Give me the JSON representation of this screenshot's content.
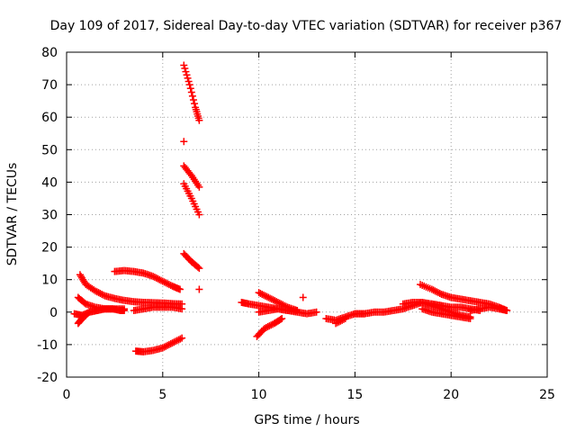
{
  "chart_data": {
    "type": "scatter",
    "title": "Day 109 of 2017, Sidereal Day-to-day VTEC variation (SDTVAR) for receiver p367",
    "xlabel": "GPS time / hours",
    "ylabel": "SDTVAR / TECUs",
    "xlim": [
      0,
      25
    ],
    "ylim": [
      -20,
      80
    ],
    "x_ticks": [
      0,
      5,
      10,
      15,
      20,
      25
    ],
    "y_ticks": [
      -20,
      -10,
      0,
      10,
      20,
      30,
      40,
      50,
      60,
      70,
      80
    ],
    "grid": true,
    "marker": "+",
    "colors": {
      "series": "#ff0000",
      "grid": "#a0a0a0",
      "axis": "#000000"
    },
    "series": [
      {
        "segments": [
          {
            "x": [
              0.7,
              1.0,
              1.5,
              2.0,
              2.5,
              3.0,
              3.5,
              4.0,
              4.5,
              5.0,
              5.5,
              6.0
            ],
            "y": [
              11.5,
              8.5,
              6.5,
              5.0,
              4.2,
              3.6,
              3.2,
              3.0,
              2.9,
              2.8,
              2.6,
              2.5
            ]
          },
          {
            "x": [
              0.6,
              1.0,
              1.5,
              2.0,
              2.5,
              3.0
            ],
            "y": [
              4.5,
              2.5,
              1.5,
              1.0,
              1.0,
              1.0
            ]
          },
          {
            "x": [
              0.4,
              0.8,
              1.2,
              1.6,
              2.0,
              2.4,
              2.8,
              3.0
            ],
            "y": [
              -0.5,
              -1.0,
              0.0,
              0.5,
              1.0,
              1.0,
              0.5,
              0.5
            ]
          },
          {
            "x": [
              0.6,
              0.8,
              1.0
            ],
            "y": [
              -3.5,
              -2.0,
              -1.0
            ]
          },
          {
            "x": [
              2.5,
              3.0,
              3.5,
              4.0,
              4.5,
              5.0,
              5.5,
              5.9
            ],
            "y": [
              12.5,
              12.8,
              12.5,
              12.0,
              11.0,
              9.5,
              8.0,
              7.0
            ]
          },
          {
            "x": [
              3.5,
              4.0,
              4.5,
              5.0,
              5.5,
              6.0
            ],
            "y": [
              0.5,
              1.0,
              1.5,
              1.5,
              1.5,
              1.0
            ]
          },
          {
            "x": [
              3.6,
              4.0,
              4.5,
              5.0,
              5.5,
              6.0
            ],
            "y": [
              -12.0,
              -12.2,
              -11.8,
              -11.0,
              -9.5,
              -8.0
            ]
          },
          {
            "x": [
              6.1,
              6.4,
              6.7,
              6.9
            ],
            "y": [
              76.0,
              70.0,
              63.0,
              59.0
            ]
          },
          {
            "x": [
              6.1
            ],
            "y": [
              52.5
            ]
          },
          {
            "x": [
              6.1,
              6.5,
              6.9
            ],
            "y": [
              45.0,
              42.0,
              38.5
            ]
          },
          {
            "x": [
              6.1,
              6.5,
              6.9
            ],
            "y": [
              39.5,
              35.0,
              30.0
            ]
          },
          {
            "x": [
              6.1,
              6.5,
              6.9
            ],
            "y": [
              18.0,
              15.5,
              13.5
            ]
          },
          {
            "x": [
              6.9
            ],
            "y": [
              7.0
            ]
          },
          {
            "x": [
              9.1,
              9.5,
              10.0,
              10.5,
              11.0,
              11.5,
              12.0
            ],
            "y": [
              3.0,
              2.5,
              2.0,
              1.5,
              1.0,
              0.5,
              0.5
            ]
          },
          {
            "x": [
              10.0,
              10.5,
              11.0,
              11.5,
              12.0
            ],
            "y": [
              6.0,
              4.5,
              3.0,
              1.5,
              0.5
            ]
          },
          {
            "x": [
              10.0,
              10.5,
              11.0,
              11.5,
              12.0,
              12.5,
              13.0
            ],
            "y": [
              0.0,
              0.5,
              1.0,
              0.5,
              0.0,
              -0.5,
              0.0
            ]
          },
          {
            "x": [
              9.9,
              10.3,
              10.8,
              11.2
            ],
            "y": [
              -7.5,
              -5.0,
              -3.5,
              -2.0
            ]
          },
          {
            "x": [
              12.3
            ],
            "y": [
              4.5
            ]
          },
          {
            "x": [
              13.5,
              14.0,
              14.5,
              15.0,
              15.5
            ],
            "y": [
              -2.0,
              -2.5,
              -1.5,
              -0.5,
              -0.5
            ]
          },
          {
            "x": [
              14.0,
              14.5
            ],
            "y": [
              -3.5,
              -2.0
            ]
          },
          {
            "x": [
              15.0,
              15.5,
              16.0,
              16.5,
              17.0,
              17.5,
              18.0,
              18.5,
              19.0,
              19.5
            ],
            "y": [
              -0.5,
              -0.5,
              0.0,
              0.0,
              0.5,
              1.0,
              2.0,
              3.0,
              2.5,
              2.0
            ]
          },
          {
            "x": [
              17.5,
              18.0,
              18.5,
              19.0,
              19.5,
              20.0,
              20.5,
              21.0
            ],
            "y": [
              2.5,
              3.0,
              3.0,
              2.0,
              1.0,
              0.0,
              -1.0,
              -1.5
            ]
          },
          {
            "x": [
              18.4,
              19.0,
              19.5,
              20.0,
              20.5,
              21.0,
              21.5,
              22.0,
              22.5,
              22.9
            ],
            "y": [
              8.5,
              7.0,
              5.5,
              4.5,
              4.0,
              3.5,
              3.0,
              2.5,
              1.5,
              0.5
            ]
          },
          {
            "x": [
              18.5,
              19.0,
              19.5,
              20.0,
              20.5,
              21.0
            ],
            "y": [
              1.0,
              0.0,
              -0.5,
              -1.0,
              -1.5,
              -2.0
            ]
          },
          {
            "x": [
              21.0,
              21.5,
              22.0,
              22.5,
              22.9
            ],
            "y": [
              0.5,
              1.0,
              1.5,
              1.0,
              0.5
            ]
          },
          {
            "x": [
              19.0,
              19.5,
              20.0,
              20.5,
              21.0,
              21.5
            ],
            "y": [
              2.5,
              2.0,
              1.5,
              1.5,
              1.0,
              0.5
            ]
          }
        ]
      }
    ]
  }
}
